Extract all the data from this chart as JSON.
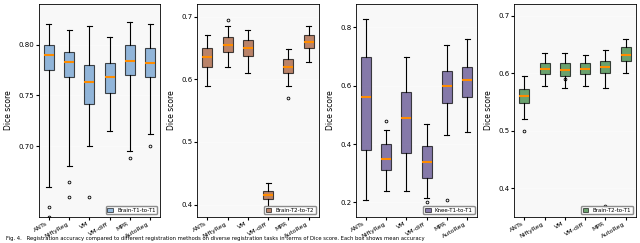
{
  "methods": [
    "ANTs",
    "NiftyReg",
    "VM",
    "VM-diff",
    "MPR",
    "AutoReg"
  ],
  "subplot1": {
    "title": "Brain-T1-to-T1",
    "color": "#6699CC",
    "ylabel": "Dice score",
    "ylim": [
      0.63,
      0.84
    ],
    "yticks": [
      0.7,
      0.75,
      0.8
    ],
    "boxes": [
      {
        "med": 0.79,
        "q1": 0.775,
        "q3": 0.8,
        "whislo": 0.66,
        "whishi": 0.82,
        "fliers_low": [
          0.64,
          0.63
        ],
        "fliers_high": []
      },
      {
        "med": 0.783,
        "q1": 0.768,
        "q3": 0.793,
        "whislo": 0.68,
        "whishi": 0.815,
        "fliers_low": [
          0.665,
          0.65
        ],
        "fliers_high": []
      },
      {
        "med": 0.763,
        "q1": 0.742,
        "q3": 0.78,
        "whislo": 0.7,
        "whishi": 0.818,
        "fliers_low": [
          0.65
        ],
        "fliers_high": []
      },
      {
        "med": 0.768,
        "q1": 0.752,
        "q3": 0.782,
        "whislo": 0.715,
        "whishi": 0.808,
        "fliers_low": [],
        "fliers_high": []
      },
      {
        "med": 0.784,
        "q1": 0.77,
        "q3": 0.8,
        "whislo": 0.695,
        "whishi": 0.822,
        "fliers_low": [
          0.688
        ],
        "fliers_high": []
      },
      {
        "med": 0.782,
        "q1": 0.768,
        "q3": 0.797,
        "whislo": 0.712,
        "whishi": 0.82,
        "fliers_low": [
          0.7
        ],
        "fliers_high": []
      }
    ]
  },
  "subplot2": {
    "title": "Brain-T2-to-T2",
    "color": "#A0522D",
    "ylabel": "Dice score",
    "ylim": [
      0.38,
      0.72
    ],
    "yticks": [
      0.4,
      0.5,
      0.6,
      0.7
    ],
    "boxes": [
      {
        "med": 0.635,
        "q1": 0.62,
        "q3": 0.65,
        "whislo": 0.59,
        "whishi": 0.67,
        "fliers_low": [],
        "fliers_high": []
      },
      {
        "med": 0.655,
        "q1": 0.643,
        "q3": 0.667,
        "whislo": 0.62,
        "whishi": 0.685,
        "fliers_low": [],
        "fliers_high": [
          0.695
        ]
      },
      {
        "med": 0.65,
        "q1": 0.638,
        "q3": 0.662,
        "whislo": 0.61,
        "whishi": 0.678,
        "fliers_low": [],
        "fliers_high": []
      },
      {
        "med": 0.415,
        "q1": 0.408,
        "q3": 0.422,
        "whislo": 0.395,
        "whishi": 0.435,
        "fliers_low": [],
        "fliers_high": []
      },
      {
        "med": 0.62,
        "q1": 0.61,
        "q3": 0.632,
        "whislo": 0.59,
        "whishi": 0.648,
        "fliers_low": [
          0.57
        ],
        "fliers_high": []
      },
      {
        "med": 0.66,
        "q1": 0.65,
        "q3": 0.67,
        "whislo": 0.628,
        "whishi": 0.685,
        "fliers_low": [],
        "fliers_high": []
      }
    ]
  },
  "subplot3": {
    "title": "Knee-T1-to-T1",
    "color": "#554488",
    "ylabel": "Dice score",
    "ylim": [
      0.15,
      0.88
    ],
    "yticks": [
      0.2,
      0.4,
      0.6,
      0.8
    ],
    "boxes": [
      {
        "med": 0.56,
        "q1": 0.38,
        "q3": 0.7,
        "whislo": 0.21,
        "whishi": 0.83,
        "fliers_low": [],
        "fliers_high": []
      },
      {
        "med": 0.35,
        "q1": 0.31,
        "q3": 0.4,
        "whislo": 0.24,
        "whishi": 0.45,
        "fliers_low": [],
        "fliers_high": [
          0.48
        ]
      },
      {
        "med": 0.49,
        "q1": 0.37,
        "q3": 0.58,
        "whislo": 0.24,
        "whishi": 0.7,
        "fliers_low": [],
        "fliers_high": []
      },
      {
        "med": 0.34,
        "q1": 0.285,
        "q3": 0.395,
        "whislo": 0.215,
        "whishi": 0.47,
        "fliers_low": [],
        "fliers_high": [
          0.2
        ]
      },
      {
        "med": 0.6,
        "q1": 0.54,
        "q3": 0.65,
        "whislo": 0.43,
        "whishi": 0.74,
        "fliers_low": [
          0.21
        ],
        "fliers_high": []
      },
      {
        "med": 0.62,
        "q1": 0.56,
        "q3": 0.665,
        "whislo": 0.44,
        "whishi": 0.76,
        "fliers_low": [],
        "fliers_high": []
      }
    ]
  },
  "subplot4": {
    "title": "Brain-T2-to-T1",
    "color": "#2E7D32",
    "ylabel": "Dice score",
    "ylim": [
      0.35,
      0.72
    ],
    "yticks": [
      0.4,
      0.5,
      0.6,
      0.7
    ],
    "boxes": [
      {
        "med": 0.56,
        "q1": 0.548,
        "q3": 0.572,
        "whislo": 0.52,
        "whishi": 0.595,
        "fliers_low": [
          0.5
        ],
        "fliers_high": []
      },
      {
        "med": 0.608,
        "q1": 0.598,
        "q3": 0.618,
        "whislo": 0.578,
        "whishi": 0.635,
        "fliers_low": [],
        "fliers_high": []
      },
      {
        "med": 0.605,
        "q1": 0.595,
        "q3": 0.618,
        "whislo": 0.574,
        "whishi": 0.635,
        "fliers_low": [],
        "fliers_high": [
          0.59
        ]
      },
      {
        "med": 0.608,
        "q1": 0.598,
        "q3": 0.618,
        "whislo": 0.578,
        "whishi": 0.632,
        "fliers_low": [],
        "fliers_high": []
      },
      {
        "med": 0.61,
        "q1": 0.6,
        "q3": 0.622,
        "whislo": 0.575,
        "whishi": 0.64,
        "fliers_low": [
          0.37
        ],
        "fliers_high": []
      },
      {
        "med": 0.632,
        "q1": 0.622,
        "q3": 0.645,
        "whislo": 0.6,
        "whishi": 0.66,
        "fliers_low": [],
        "fliers_high": []
      }
    ]
  },
  "caption": "Fig. 4.   Registration accuracy compared to different registration methods on diverse registration tasks in terms of Dice score. Each box shows mean accuracy",
  "fig_background": "#f0f0f0"
}
